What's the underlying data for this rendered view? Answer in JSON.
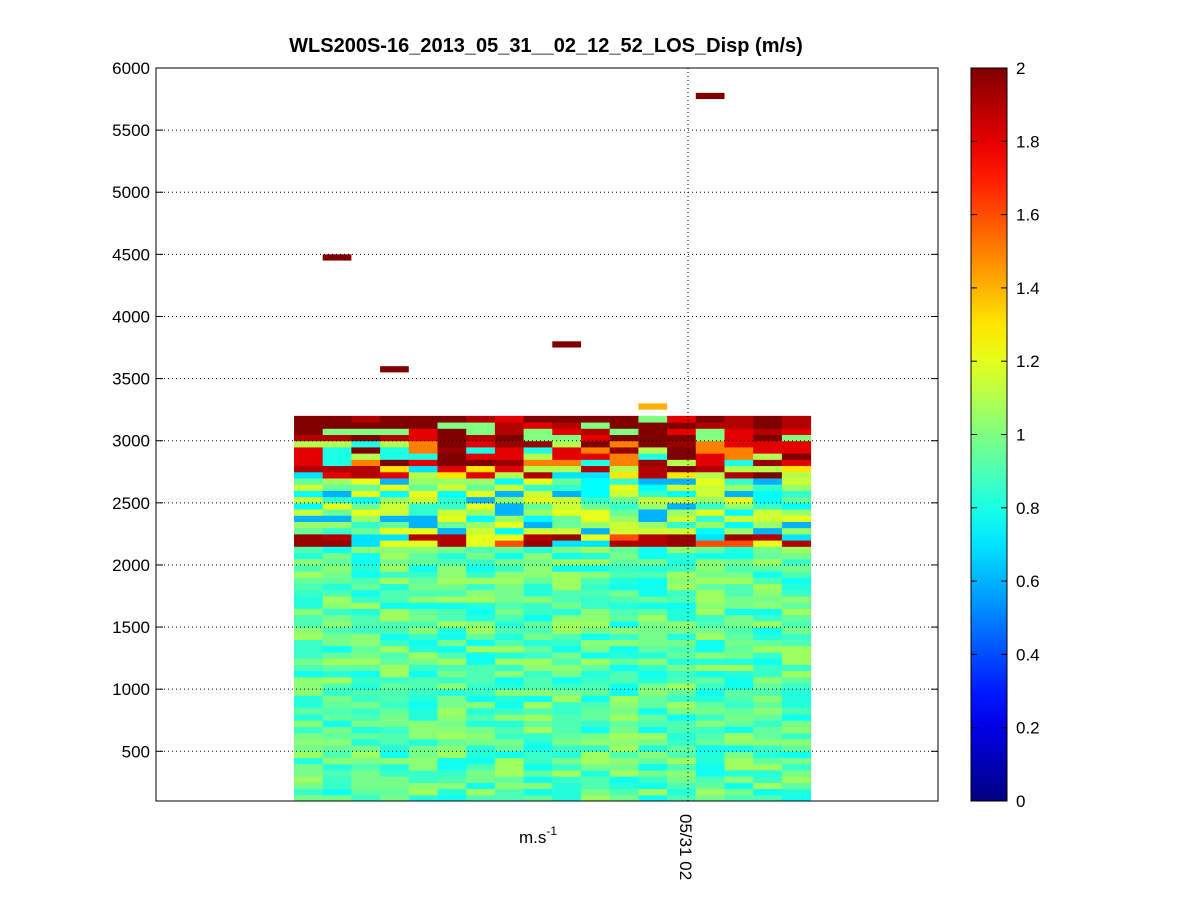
{
  "chart_data": {
    "type": "heatmap",
    "title": "WLS200S-16_2013_05_31__02_12_52_LOS_Disp (m/s)",
    "xlabel_base": "m.s",
    "xlabel_exponent": "-1",
    "x_tick_label": "05/31 02",
    "ylim": [
      100,
      6000
    ],
    "y_ticks": [
      500,
      1000,
      1500,
      2000,
      2500,
      3000,
      3500,
      4000,
      4500,
      5000,
      5500,
      6000
    ],
    "colorbar": {
      "colormap": "jet",
      "range": [
        0,
        2
      ],
      "ticks": [
        0,
        0.2,
        0.4,
        0.6,
        0.8,
        1,
        1.2,
        1.4,
        1.6,
        1.8,
        2
      ]
    },
    "grid": true,
    "columns": 18,
    "range_gate_min": 100,
    "range_gate_max": 3200,
    "gate_spacing": 50,
    "bands": [
      {
        "from": 100,
        "to": 2150,
        "values": [
          0.78,
          0.82,
          0.86,
          0.9,
          0.94,
          0.98,
          1.02,
          1.06
        ]
      },
      {
        "from": 2150,
        "to": 2250,
        "values": [
          1.9,
          1.6,
          1.2,
          0.7,
          1.95
        ]
      },
      {
        "from": 2250,
        "to": 2700,
        "values": [
          0.75,
          0.85,
          0.95,
          1.05,
          1.15,
          0.6,
          1.2
        ]
      },
      {
        "from": 2700,
        "to": 2800,
        "values": [
          1.8,
          1.9,
          2.0,
          1.3,
          0.7,
          1.1
        ]
      },
      {
        "from": 2800,
        "to": 3000,
        "values": [
          1.95,
          2.0,
          1.8,
          1.5,
          0.8,
          1.1
        ]
      },
      {
        "from": 3000,
        "to": 3200,
        "values": [
          2.0,
          2.0,
          1.9,
          1.8,
          1.0
        ]
      }
    ],
    "isolated_cells": [
      {
        "col": 1,
        "y": 4450,
        "value": 2
      },
      {
        "col": 3,
        "y": 3550,
        "value": 2
      },
      {
        "col": 9,
        "y": 3750,
        "value": 2
      },
      {
        "col": 14,
        "y": 5750,
        "value": 2
      },
      {
        "col": 12,
        "y": 3250,
        "value": 1.4
      }
    ]
  }
}
